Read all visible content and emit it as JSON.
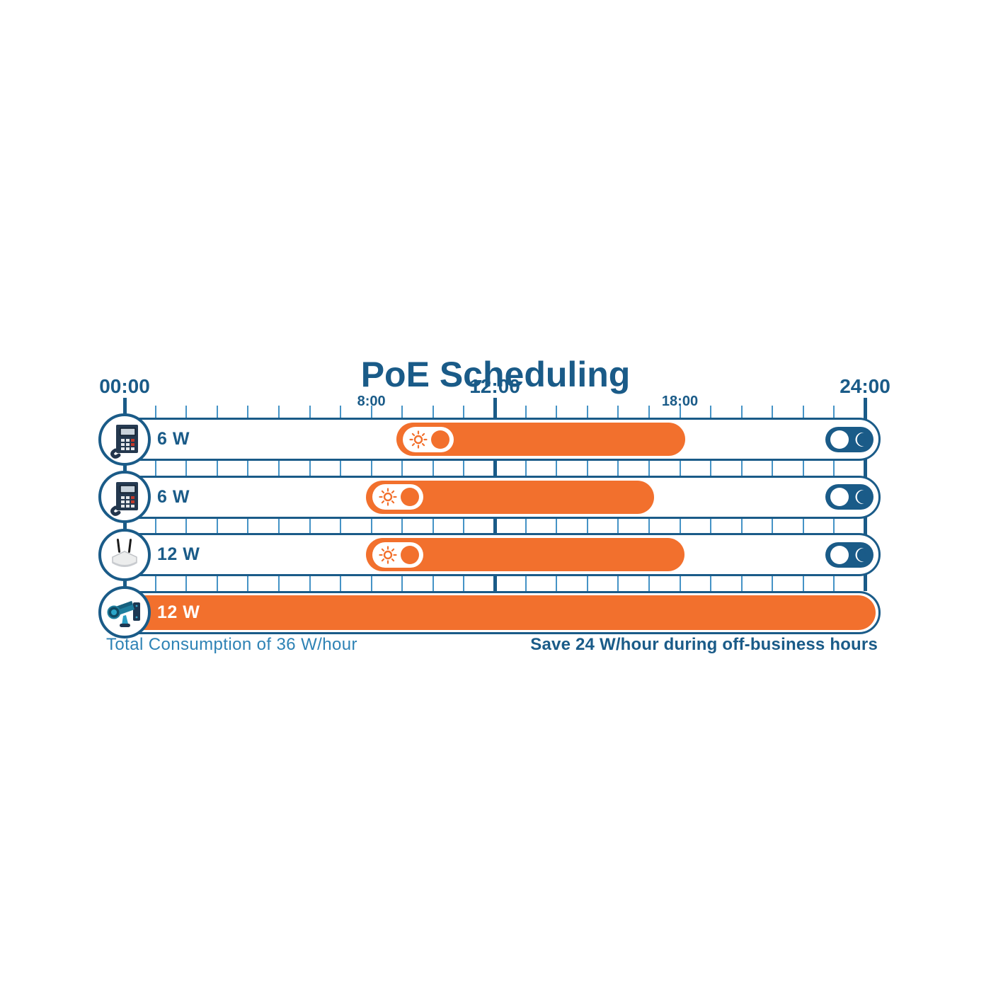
{
  "title": "PoE Scheduling",
  "chart_data": {
    "type": "bar",
    "variant": "24h-schedule-gantt",
    "title": "PoE Scheduling",
    "x_axis": {
      "unit": "hour-of-day",
      "min_hour": 0,
      "max_hour": 24,
      "tick_interval_hours": 1,
      "grid": true,
      "labels": [
        {
          "hour": 0,
          "text": "00:00",
          "major": true
        },
        {
          "hour": 8,
          "text": "8:00",
          "major": false
        },
        {
          "hour": 12,
          "text": "12:00",
          "major": true
        },
        {
          "hour": 18,
          "text": "18:00",
          "major": false
        },
        {
          "hour": 24,
          "text": "24:00",
          "major": true
        }
      ]
    },
    "rows": [
      {
        "device": "ip-phone",
        "device_icon": "ip-phone-icon",
        "power_label": "6 W",
        "power_watts": 6,
        "on_start_hour": 9,
        "on_end_hour": 18,
        "always_on": false,
        "day_toggle": "on",
        "night_toggle": "off"
      },
      {
        "device": "ip-phone",
        "device_icon": "ip-phone-icon",
        "power_label": "6 W",
        "power_watts": 6,
        "on_start_hour": 8,
        "on_end_hour": 17,
        "always_on": false,
        "day_toggle": "on",
        "night_toggle": "off"
      },
      {
        "device": "wireless-access-point",
        "device_icon": "access-point-icon",
        "power_label": "12 W",
        "power_watts": 12,
        "on_start_hour": 8,
        "on_end_hour": 18,
        "always_on": false,
        "day_toggle": "on",
        "night_toggle": "off"
      },
      {
        "device": "cctv-camera",
        "device_icon": "cctv-camera-icon",
        "power_label": "12 W",
        "power_watts": 12,
        "on_start_hour": 0,
        "on_end_hour": 24,
        "always_on": true
      }
    ]
  },
  "footer": {
    "left": "Total Consumption of 36 W/hour",
    "right": "Save 24 W/hour during off-business hours"
  },
  "colors": {
    "dark_blue": "#1a5b88",
    "grid_blue": "#4593c6",
    "orange": "#f2702d",
    "footer_blue": "#2d82b5",
    "white": "#ffffff"
  }
}
